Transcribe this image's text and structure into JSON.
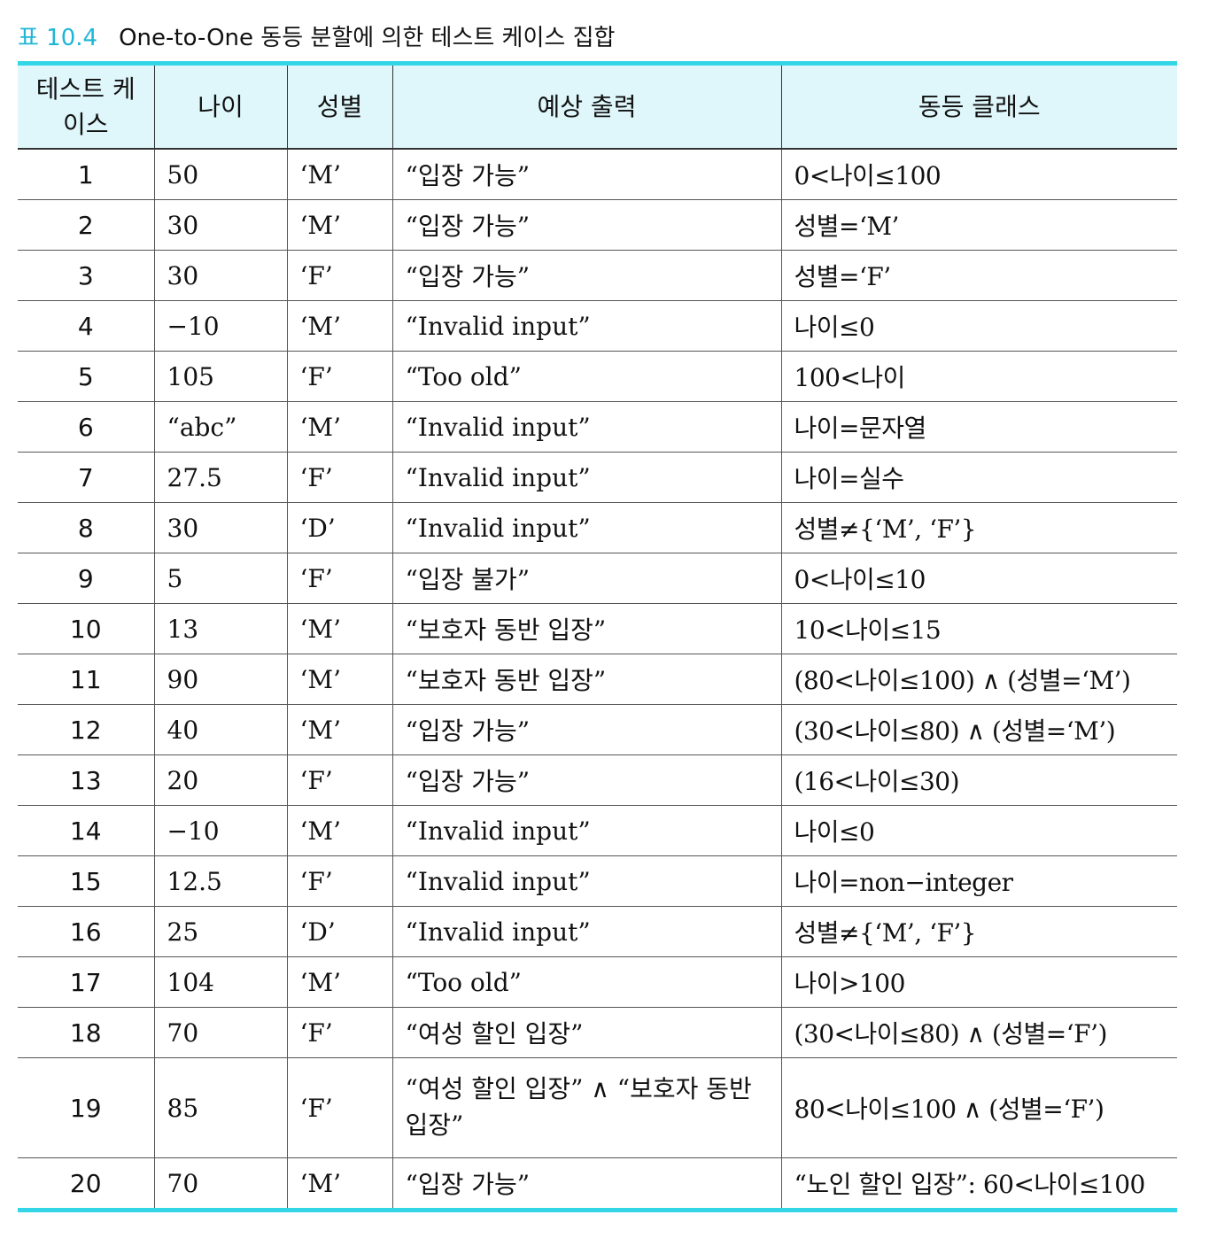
{
  "caption": {
    "number": "표 10.4",
    "title": "One-to-One 동등 분할에 의한 테스트 케이스 집합"
  },
  "headers": [
    "테스트 케이스",
    "나이",
    "성별",
    "예상 출력",
    "동등 클래스"
  ],
  "rows": [
    {
      "id": "1",
      "age": "50",
      "gender": "‘M’",
      "output": "“입장 가능”",
      "class": "0<나이≤100"
    },
    {
      "id": "2",
      "age": "30",
      "gender": "‘M’",
      "output": "“입장 가능”",
      "class": "성별=‘M’"
    },
    {
      "id": "3",
      "age": "30",
      "gender": "‘F’",
      "output": "“입장 가능”",
      "class": "성별=‘F’"
    },
    {
      "id": "4",
      "age": "−10",
      "gender": "‘M’",
      "output": "“Invalid input”",
      "class": "나이≤0"
    },
    {
      "id": "5",
      "age": "105",
      "gender": "‘F’",
      "output": "“Too old”",
      "class": "100<나이"
    },
    {
      "id": "6",
      "age": "“abc”",
      "gender": "‘M’",
      "output": "“Invalid input”",
      "class": "나이=문자열"
    },
    {
      "id": "7",
      "age": "27.5",
      "gender": "‘F’",
      "output": "“Invalid input”",
      "class": "나이=실수"
    },
    {
      "id": "8",
      "age": "30",
      "gender": "‘D’",
      "output": "“Invalid input”",
      "class": "성별≠{‘M’, ‘F’}"
    },
    {
      "id": "9",
      "age": "5",
      "gender": "‘F’",
      "output": "“입장 불가”",
      "class": "0<나이≤10"
    },
    {
      "id": "10",
      "age": "13",
      "gender": "‘M’",
      "output": "“보호자 동반 입장”",
      "class": "10<나이≤15"
    },
    {
      "id": "11",
      "age": "90",
      "gender": "‘M’",
      "output": "“보호자 동반 입장”",
      "class": "(80<나이≤100) ∧ (성별=‘M’)"
    },
    {
      "id": "12",
      "age": "40",
      "gender": "‘M’",
      "output": "“입장 가능”",
      "class": "(30<나이≤80) ∧ (성별=‘M’)"
    },
    {
      "id": "13",
      "age": "20",
      "gender": "‘F’",
      "output": "“입장 가능”",
      "class": "(16<나이≤30)"
    },
    {
      "id": "14",
      "age": "−10",
      "gender": "‘M’",
      "output": "“Invalid input”",
      "class": "나이≤0"
    },
    {
      "id": "15",
      "age": "12.5",
      "gender": "‘F’",
      "output": "“Invalid input”",
      "class": "나이=non−integer"
    },
    {
      "id": "16",
      "age": "25",
      "gender": "‘D’",
      "output": "“Invalid input”",
      "class": "성별≠{‘M’, ‘F’}"
    },
    {
      "id": "17",
      "age": "104",
      "gender": "‘M’",
      "output": "“Too old”",
      "class": "나이>100"
    },
    {
      "id": "18",
      "age": "70",
      "gender": "‘F’",
      "output": "“여성 할인 입장”",
      "class": "(30<나이≤80) ∧ (성별=‘F’)"
    },
    {
      "id": "19",
      "age": "85",
      "gender": "‘F’",
      "output": "“여성 할인 입장” ∧ “보호자 동반 입장”",
      "class": "80<나이≤100 ∧ (성별=‘F’)"
    },
    {
      "id": "20",
      "age": "70",
      "gender": "‘M’",
      "output": "“입장 가능”",
      "class": "“노인 할인 입장”: 60<나이≤100"
    }
  ]
}
